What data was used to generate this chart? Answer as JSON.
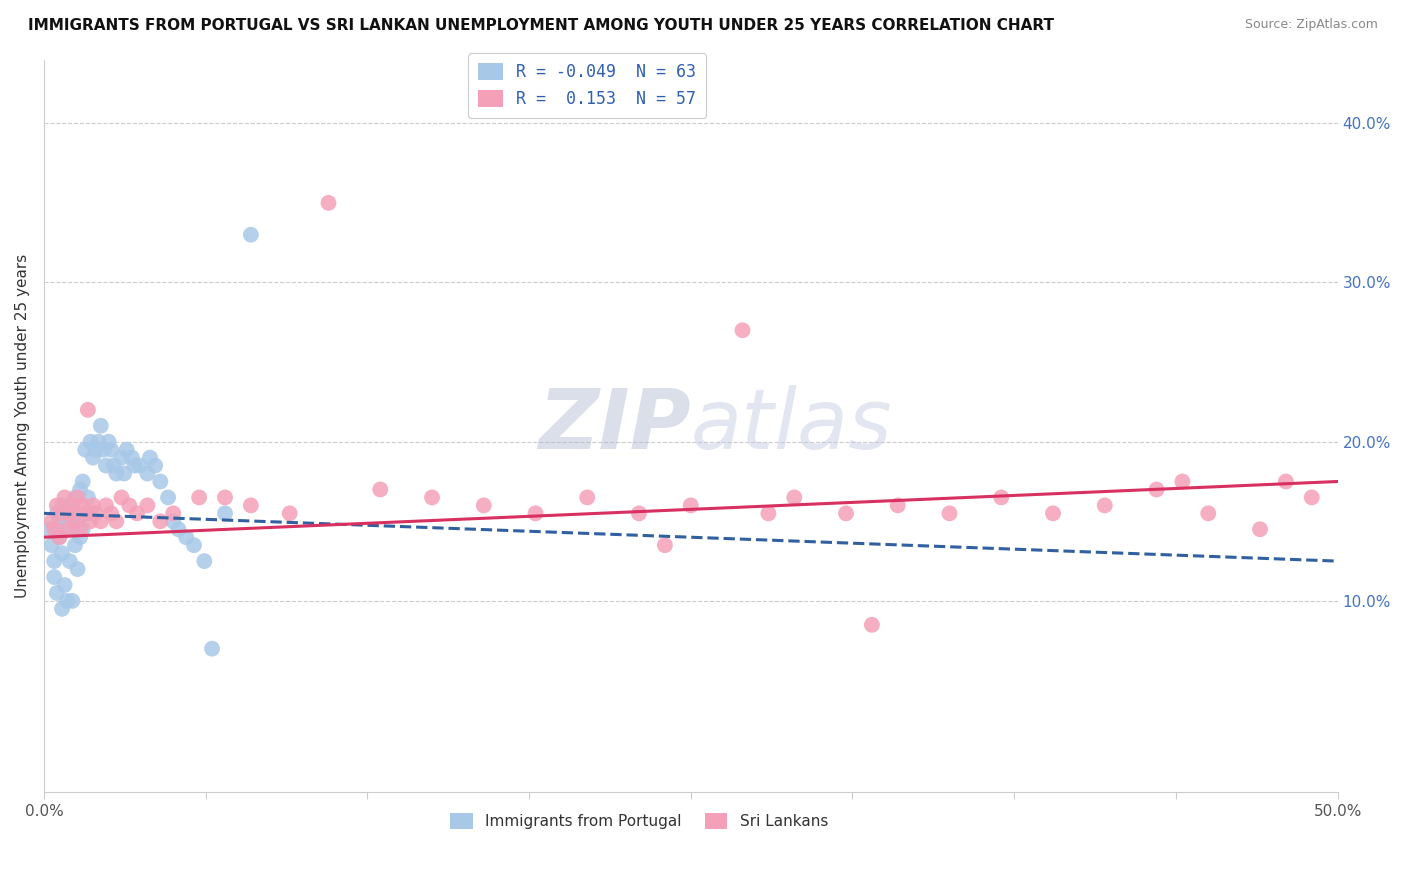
{
  "title": "IMMIGRANTS FROM PORTUGAL VS SRI LANKAN UNEMPLOYMENT AMONG YOUTH UNDER 25 YEARS CORRELATION CHART",
  "source": "Source: ZipAtlas.com",
  "ylabel": "Unemployment Among Youth under 25 years",
  "xlim": [
    0.0,
    0.5
  ],
  "ylim": [
    -0.02,
    0.44
  ],
  "yticks_right": [
    0.1,
    0.2,
    0.3,
    0.4
  ],
  "ytick_right_labels": [
    "10.0%",
    "20.0%",
    "30.0%",
    "40.0%"
  ],
  "xtick_positions": [
    0.0,
    0.0625,
    0.125,
    0.1875,
    0.25,
    0.3125,
    0.375,
    0.4375,
    0.5
  ],
  "blue_R": -0.049,
  "blue_N": 63,
  "pink_R": 0.153,
  "pink_N": 57,
  "blue_color": "#a8c8e8",
  "pink_color": "#f4a0b8",
  "blue_line_color": "#3060a0",
  "pink_line_color": "#d83060",
  "legend_label_blue": "Immigrants from Portugal",
  "legend_label_pink": "Sri Lankans",
  "blue_trend_x": [
    0.0,
    0.5
  ],
  "blue_trend_y": [
    0.155,
    0.125
  ],
  "pink_trend_x": [
    0.0,
    0.5
  ],
  "pink_trend_y": [
    0.14,
    0.175
  ],
  "blue_pts_x": [
    0.002,
    0.003,
    0.004,
    0.004,
    0.005,
    0.005,
    0.005,
    0.006,
    0.006,
    0.007,
    0.007,
    0.007,
    0.008,
    0.008,
    0.009,
    0.009,
    0.01,
    0.01,
    0.01,
    0.011,
    0.011,
    0.012,
    0.012,
    0.013,
    0.013,
    0.014,
    0.014,
    0.015,
    0.015,
    0.016,
    0.016,
    0.017,
    0.018,
    0.018,
    0.019,
    0.02,
    0.021,
    0.022,
    0.023,
    0.024,
    0.025,
    0.026,
    0.027,
    0.028,
    0.03,
    0.031,
    0.032,
    0.034,
    0.035,
    0.037,
    0.04,
    0.041,
    0.043,
    0.045,
    0.048,
    0.05,
    0.052,
    0.055,
    0.058,
    0.062,
    0.065,
    0.07,
    0.08
  ],
  "blue_pts_y": [
    0.145,
    0.135,
    0.125,
    0.115,
    0.155,
    0.145,
    0.105,
    0.15,
    0.14,
    0.13,
    0.16,
    0.095,
    0.155,
    0.11,
    0.15,
    0.1,
    0.16,
    0.145,
    0.125,
    0.155,
    0.1,
    0.165,
    0.135,
    0.15,
    0.12,
    0.17,
    0.14,
    0.175,
    0.145,
    0.195,
    0.155,
    0.165,
    0.2,
    0.155,
    0.19,
    0.195,
    0.2,
    0.21,
    0.195,
    0.185,
    0.2,
    0.195,
    0.185,
    0.18,
    0.19,
    0.18,
    0.195,
    0.19,
    0.185,
    0.185,
    0.18,
    0.19,
    0.185,
    0.175,
    0.165,
    0.15,
    0.145,
    0.14,
    0.135,
    0.125,
    0.07,
    0.155,
    0.33
  ],
  "pink_pts_x": [
    0.003,
    0.004,
    0.005,
    0.006,
    0.007,
    0.008,
    0.009,
    0.01,
    0.011,
    0.012,
    0.013,
    0.014,
    0.015,
    0.016,
    0.017,
    0.018,
    0.019,
    0.02,
    0.022,
    0.024,
    0.026,
    0.028,
    0.03,
    0.033,
    0.036,
    0.04,
    0.045,
    0.05,
    0.06,
    0.07,
    0.08,
    0.095,
    0.11,
    0.13,
    0.15,
    0.17,
    0.19,
    0.21,
    0.23,
    0.25,
    0.27,
    0.29,
    0.31,
    0.33,
    0.35,
    0.37,
    0.39,
    0.41,
    0.43,
    0.45,
    0.47,
    0.49,
    0.32,
    0.28,
    0.24,
    0.44,
    0.48
  ],
  "pink_pts_y": [
    0.15,
    0.145,
    0.16,
    0.14,
    0.155,
    0.165,
    0.145,
    0.155,
    0.16,
    0.15,
    0.165,
    0.145,
    0.16,
    0.155,
    0.22,
    0.15,
    0.16,
    0.155,
    0.15,
    0.16,
    0.155,
    0.15,
    0.165,
    0.16,
    0.155,
    0.16,
    0.15,
    0.155,
    0.165,
    0.165,
    0.16,
    0.155,
    0.35,
    0.17,
    0.165,
    0.16,
    0.155,
    0.165,
    0.155,
    0.16,
    0.27,
    0.165,
    0.155,
    0.16,
    0.155,
    0.165,
    0.155,
    0.16,
    0.17,
    0.155,
    0.145,
    0.165,
    0.085,
    0.155,
    0.135,
    0.175,
    0.175
  ]
}
